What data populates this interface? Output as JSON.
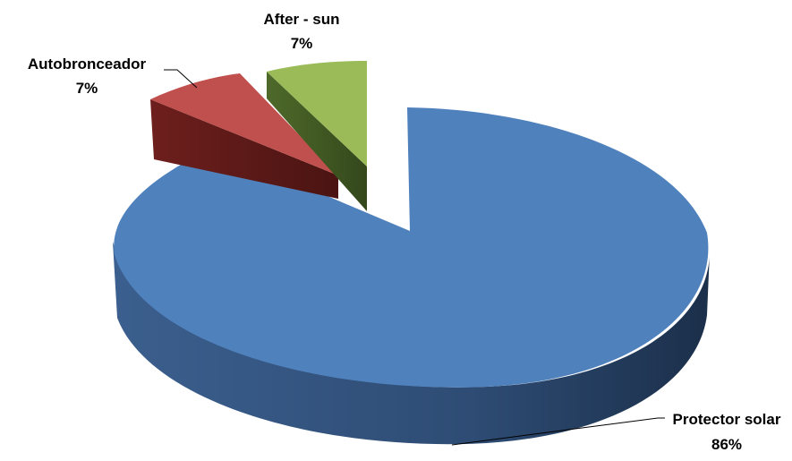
{
  "chart_data": {
    "type": "pie",
    "style": "3d-exploded",
    "slices": [
      {
        "label": "Protector solar",
        "value": 86,
        "value_label": "86%",
        "color": "#4F81BD"
      },
      {
        "label": "Autobronceador",
        "value": 7,
        "value_label": "7%",
        "color": "#C0504D"
      },
      {
        "label": "After - sun",
        "value": 7,
        "value_label": "7%",
        "color": "#9BBB59"
      }
    ],
    "legend": "none"
  }
}
